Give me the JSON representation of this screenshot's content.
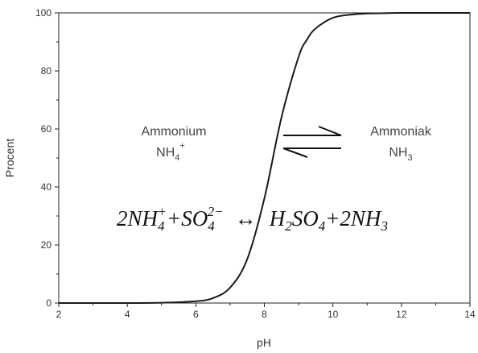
{
  "chart_data": {
    "type": "line",
    "xlabel": "pH",
    "ylabel": "Procent",
    "xlim": [
      2,
      14
    ],
    "ylim": [
      0,
      100
    ],
    "x_ticks": [
      2,
      4,
      6,
      8,
      10,
      12,
      14
    ],
    "y_ticks": [
      0,
      20,
      40,
      60,
      80,
      100
    ],
    "grid": false,
    "series": [
      {
        "x": [
          2,
          4,
          5,
          6,
          6.5,
          7,
          7.5,
          8,
          8.5,
          9,
          9.25,
          9.5,
          10,
          10.5,
          11,
          11.5,
          12,
          13,
          14
        ],
        "y": [
          0,
          0,
          0.1,
          0.6,
          1.7,
          5.3,
          15.1,
          36.0,
          64.0,
          84.9,
          90.9,
          94.7,
          98.3,
          99.4,
          99.8,
          99.9,
          100,
          100,
          100
        ],
        "color": "#1a1a1a"
      }
    ],
    "annotations": {
      "left_species_name": "Ammonium",
      "left_species_formula": "NH",
      "left_species_sub": "4",
      "left_species_sup": "+",
      "right_species_name": "Ammoniak",
      "right_species_formula": "NH",
      "right_species_sub": "3",
      "equilibrium_arrows": "⇄",
      "equation": {
        "lhs": "2NH",
        "lhs_sub": "4",
        "lhs_sup": "+",
        "plus1": "+SO",
        "so_sub": "4",
        "so_sup": "2−",
        "arrow": "↔",
        "rhs_h": "H",
        "rhs_h_sub": "2",
        "rhs_so": "SO",
        "rhs_so_sub": "4",
        "rhs_plus": "+2NH",
        "rhs_nh_sub": "3"
      }
    }
  }
}
